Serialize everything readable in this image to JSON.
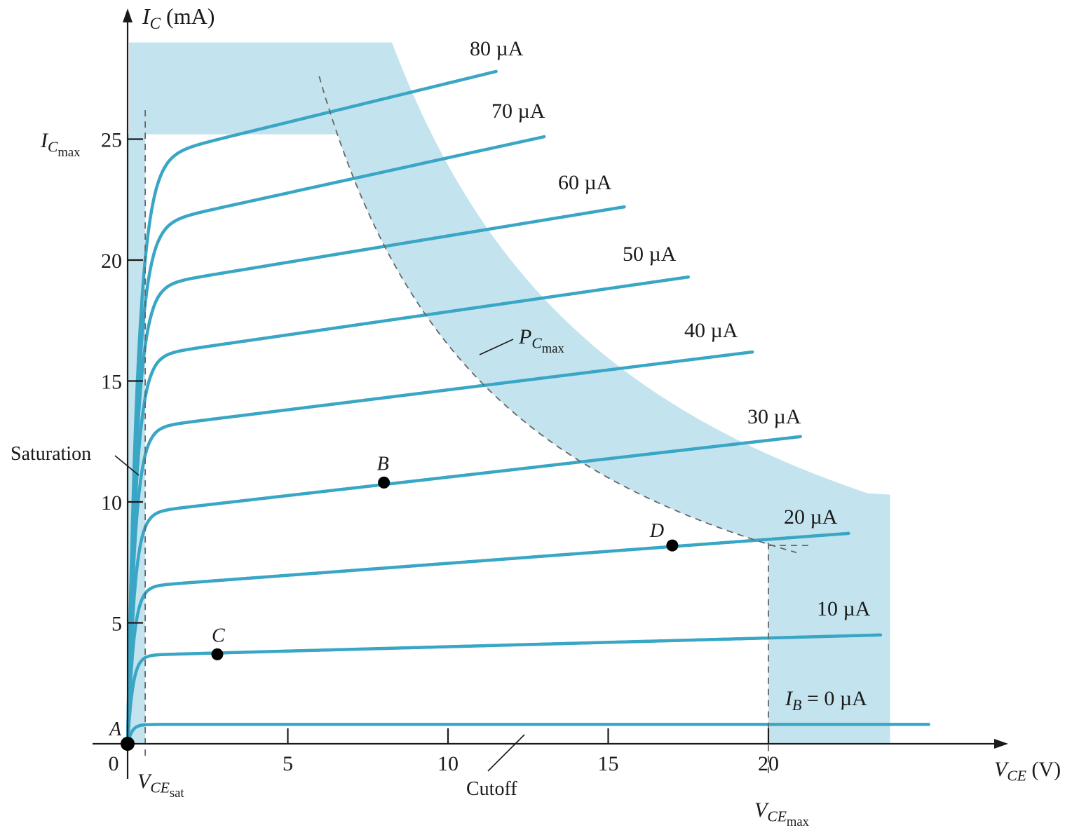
{
  "chart_data": {
    "type": "line",
    "title": "",
    "xlabel": {
      "main": "V",
      "sub": "CE",
      "unit": "(V)"
    },
    "ylabel": {
      "main": "I",
      "sub": "C",
      "unit": "(mA)"
    },
    "xlim": [
      0,
      24
    ],
    "ylim": [
      0,
      29
    ],
    "x_ticks": [
      0,
      5,
      10,
      15,
      20
    ],
    "y_ticks": [
      5,
      10,
      15,
      20,
      25
    ],
    "grid": false,
    "legend": "none",
    "series": [
      {
        "name": "I_B = 0 µA",
        "x_end": 25,
        "y_flat": 0.8,
        "y_end": 0.8
      },
      {
        "name": "10 µA",
        "x_end": 23.5,
        "y_flat": 3.7,
        "y_end": 4.5
      },
      {
        "name": "20 µA",
        "x_end": 22.5,
        "y_flat": 6.6,
        "y_end": 8.7
      },
      {
        "name": "30 µA",
        "x_end": 21,
        "y_flat": 9.7,
        "y_end": 12.7
      },
      {
        "name": "40 µA",
        "x_end": 19.5,
        "y_flat": 13.2,
        "y_end": 16.2
      },
      {
        "name": "50 µA",
        "x_end": 17.5,
        "y_flat": 16.2,
        "y_end": 19.3
      },
      {
        "name": "60 µA",
        "x_end": 15.5,
        "y_flat": 19.1,
        "y_end": 22.2
      },
      {
        "name": "70 µA",
        "x_end": 13.0,
        "y_flat": 21.7,
        "y_end": 25.1
      },
      {
        "name": "80 µA",
        "x_end": 11.5,
        "y_flat": 24.5,
        "y_end": 27.8
      }
    ],
    "points": [
      {
        "name": "A",
        "x": 0,
        "y": 0
      },
      {
        "name": "B",
        "x": 8,
        "y": 10.8
      },
      {
        "name": "C",
        "x": 2.8,
        "y": 3.7
      },
      {
        "name": "D",
        "x": 17,
        "y": 8.2
      }
    ],
    "limits": {
      "ic_max": 25.2,
      "vce_max": 20,
      "vce_sat": 0.55,
      "pc_max_mw": 165
    },
    "annotations": {
      "ic_max": {
        "main": "I",
        "sub1": "C",
        "sub2": "max"
      },
      "vce_sat": {
        "main": "V",
        "sub1": "CE",
        "sub2": "sat"
      },
      "vce_max": {
        "main": "V",
        "sub1": "CE",
        "sub2": "max"
      },
      "pc_max": {
        "main": "P",
        "sub1": "C",
        "sub2": "max"
      },
      "saturation": "Saturation",
      "cutoff": "Cutoff",
      "ib_prefix_main": "I",
      "ib_prefix_sub": "B",
      "ib_prefix_eq": " = "
    },
    "colors": {
      "curve": "#3aa6c5",
      "region": "#c3e4ee",
      "axis": "#1a1a1a"
    }
  }
}
